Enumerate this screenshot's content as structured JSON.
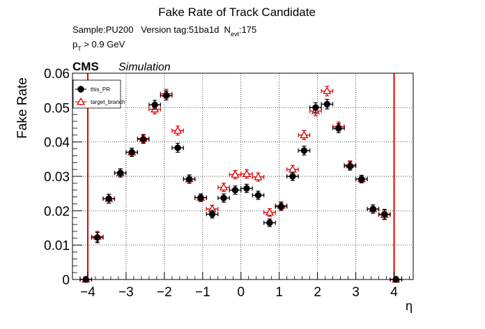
{
  "chart_data": {
    "type": "scatter",
    "title": "Fake Rate of Track Candidate",
    "subtitle_line1_parts": [
      "Sample:PU200   Version tag:51ba1d  N",
      "evt",
      ":175"
    ],
    "subtitle_line2_parts": [
      "p",
      "T",
      " > 0.9 GeV"
    ],
    "experiment": "CMS",
    "experiment_tag": "Simulation",
    "xlabel": "η",
    "ylabel": "Fake Rate",
    "xlim": [
      -4.4,
      4.5
    ],
    "ylim": [
      0,
      0.06
    ],
    "grid": true,
    "legend_position": "top-left",
    "xticks": [
      -4,
      -3,
      -2,
      -1,
      0,
      1,
      2,
      3,
      4
    ],
    "xtick_labels": [
      "−4",
      "−3",
      "−2",
      "−1",
      "0",
      "1",
      "2",
      "3",
      "4"
    ],
    "yticks": [
      0,
      0.01,
      0.02,
      0.03,
      0.04,
      0.05,
      0.06
    ],
    "ytick_labels": [
      "0",
      "0.01",
      "0.02",
      "0.03",
      "0.04",
      "0.05",
      "0.06"
    ],
    "vertical_lines": [
      -4,
      4
    ],
    "vertical_line_color": "#e00000",
    "bin_halfwidth": 0.15,
    "series": [
      {
        "name": "this_PR",
        "color": "#000000",
        "marker": "filled-circle",
        "x": [
          -4.05,
          -3.75,
          -3.45,
          -3.15,
          -2.85,
          -2.55,
          -2.25,
          -1.95,
          -1.65,
          -1.35,
          -1.05,
          -0.75,
          -0.45,
          -0.15,
          0.15,
          0.45,
          0.75,
          1.05,
          1.35,
          1.65,
          1.95,
          2.25,
          2.55,
          2.85,
          3.15,
          3.45,
          3.75,
          4.05
        ],
        "y": [
          0.0,
          0.0122,
          0.0235,
          0.031,
          0.037,
          0.0408,
          0.0508,
          0.0535,
          0.0383,
          0.0292,
          0.0238,
          0.019,
          0.0237,
          0.026,
          0.0265,
          0.0245,
          0.0165,
          0.0212,
          0.03,
          0.0375,
          0.05,
          0.051,
          0.044,
          0.033,
          0.0292,
          0.0205,
          0.019,
          0.0
        ],
        "err": [
          0.0008,
          0.0015,
          0.0013,
          0.0012,
          0.0012,
          0.0012,
          0.0013,
          0.0013,
          0.0013,
          0.0012,
          0.0011,
          0.0011,
          0.0012,
          0.0012,
          0.0012,
          0.0012,
          0.0011,
          0.0011,
          0.0012,
          0.0013,
          0.0014,
          0.0014,
          0.0013,
          0.0012,
          0.0011,
          0.0012,
          0.0014,
          0.0008
        ]
      },
      {
        "name": "target_branch",
        "color": "#e00000",
        "marker": "open-triangle",
        "x": [
          -4.05,
          -3.75,
          -3.45,
          -3.15,
          -2.85,
          -2.55,
          -2.25,
          -1.95,
          -1.65,
          -1.35,
          -1.05,
          -0.75,
          -0.45,
          -0.15,
          0.15,
          0.45,
          0.75,
          1.05,
          1.35,
          1.65,
          1.95,
          2.25,
          2.55,
          2.85,
          3.15,
          3.45,
          3.75,
          4.05
        ],
        "y": [
          0.0,
          0.0125,
          0.0235,
          0.031,
          0.037,
          0.041,
          0.0495,
          0.054,
          0.0433,
          0.0292,
          0.0238,
          0.0205,
          0.0268,
          0.0305,
          0.0307,
          0.0298,
          0.0195,
          0.0215,
          0.032,
          0.042,
          0.049,
          0.0548,
          0.0445,
          0.0333,
          0.0292,
          0.0205,
          0.0188,
          0.0
        ],
        "err": [
          0.0008,
          0.0015,
          0.0013,
          0.0012,
          0.0012,
          0.0012,
          0.0013,
          0.0013,
          0.0013,
          0.0012,
          0.0011,
          0.0011,
          0.0012,
          0.0012,
          0.0012,
          0.0012,
          0.0011,
          0.0011,
          0.0012,
          0.0013,
          0.0014,
          0.0014,
          0.0013,
          0.0012,
          0.0011,
          0.0012,
          0.0014,
          0.0008
        ]
      }
    ]
  }
}
